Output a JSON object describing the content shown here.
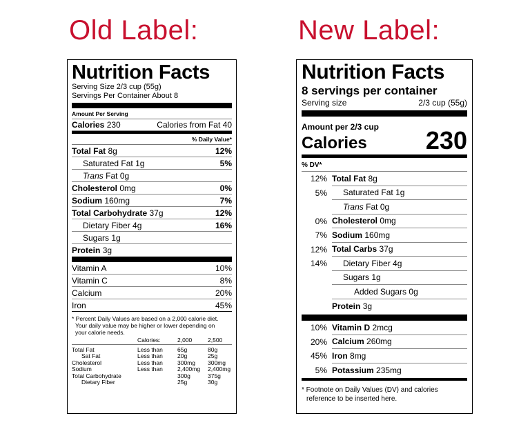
{
  "headings": {
    "old": "Old Label:",
    "new": "New Label:"
  },
  "old_label": {
    "title": "Nutrition Facts",
    "serving_size": "Serving Size 2/3 cup (55g)",
    "servings_per_container": "Servings Per Container About 8",
    "amount_per_serving": "Amount Per Serving",
    "calories_label": "Calories",
    "calories_value": "230",
    "calories_from_fat": "Calories from Fat 40",
    "daily_value_header": "% Daily Value*",
    "nutrients": [
      {
        "name": "Total Fat",
        "amount": "8g",
        "pct": "12%",
        "bold": true,
        "indent": 0
      },
      {
        "name": "Saturated Fat",
        "amount": "1g",
        "pct": "5%",
        "bold": false,
        "indent": 1
      },
      {
        "name": "Trans",
        "suffix": "Fat 0g",
        "pct": "",
        "bold": false,
        "indent": 1
      },
      {
        "name": "Cholesterol",
        "amount": "0mg",
        "pct": "0%",
        "bold": true,
        "indent": 0
      },
      {
        "name": "Sodium",
        "amount": "160mg",
        "pct": "7%",
        "bold": true,
        "indent": 0
      },
      {
        "name": "Total Carbohydrate",
        "amount": "37g",
        "pct": "12%",
        "bold": true,
        "indent": 0
      },
      {
        "name": "Dietary Fiber",
        "amount": "4g",
        "pct": "16%",
        "bold": false,
        "indent": 1
      },
      {
        "name": "Sugars",
        "amount": "1g",
        "pct": "",
        "bold": false,
        "indent": 1
      },
      {
        "name": "Protein",
        "amount": "3g",
        "pct": "",
        "bold": true,
        "indent": 0
      }
    ],
    "vitamins": [
      {
        "name": "Vitamin A",
        "pct": "10%"
      },
      {
        "name": "Vitamin C",
        "pct": "8%"
      },
      {
        "name": "Calcium",
        "pct": "20%"
      },
      {
        "name": "Iron",
        "pct": "45%"
      }
    ],
    "footnote_line1": "* Percent Daily Values are based on a 2,000 calorie diet.",
    "footnote_line2": "Your daily value may be higher or lower depending on",
    "footnote_line3": "your calorie needs.",
    "footnote_table": {
      "header": [
        "",
        "Calories:",
        "2,000",
        "2,500"
      ],
      "rows": [
        [
          "Total Fat",
          "Less than",
          "65g",
          "80g"
        ],
        [
          "Sat Fat",
          "Less than",
          "20g",
          "25g"
        ],
        [
          "Cholesterol",
          "Less than",
          "300mg",
          "300mg"
        ],
        [
          "Sodium",
          "Less than",
          "2,400mg",
          "2,400mg"
        ],
        [
          "Total Carbohydrate",
          "",
          "300g",
          "375g"
        ],
        [
          "Dietary Fiber",
          "",
          "25g",
          "30g"
        ]
      ]
    }
  },
  "new_label": {
    "title": "Nutrition Facts",
    "servings_per_container": "8 servings per container",
    "serving_size_label": "Serving size",
    "serving_size_value": "2/3 cup (55g)",
    "amount_per": "Amount per 2/3 cup",
    "calories_label": "Calories",
    "calories_value": "230",
    "dv_header": "% DV*",
    "nutrients": [
      {
        "pct": "12%",
        "name": "Total Fat",
        "amount": "8g",
        "bold": true,
        "indent": 0
      },
      {
        "pct": "5%",
        "name": "Saturated Fat",
        "amount": "1g",
        "bold": false,
        "indent": 1
      },
      {
        "pct": "",
        "name": "Trans",
        "suffix": "Fat 0g",
        "bold": false,
        "indent": 1
      },
      {
        "pct": "0%",
        "name": "Cholesterol",
        "amount": "0mg",
        "bold": true,
        "indent": 0
      },
      {
        "pct": "7%",
        "name": "Sodium",
        "amount": "160mg",
        "bold": true,
        "indent": 0
      },
      {
        "pct": "12%",
        "name": "Total Carbs",
        "amount": "37g",
        "bold": true,
        "indent": 0
      },
      {
        "pct": "14%",
        "name": "Dietary Fiber",
        "amount": "4g",
        "bold": false,
        "indent": 1
      },
      {
        "pct": "",
        "name": "Sugars",
        "amount": "1g",
        "bold": false,
        "indent": 1
      },
      {
        "pct": "",
        "name": "Added Sugars",
        "amount": "0g",
        "bold": false,
        "indent": 2
      },
      {
        "pct": "",
        "name": "Protein",
        "amount": "3g",
        "bold": true,
        "indent": 0
      }
    ],
    "vitamins": [
      {
        "pct": "10%",
        "name": "Vitamin D",
        "amount": "2mcg"
      },
      {
        "pct": "20%",
        "name": "Calcium",
        "amount": "260mg"
      },
      {
        "pct": "45%",
        "name": "Iron",
        "amount": "8mg"
      },
      {
        "pct": "5%",
        "name": "Potassium",
        "amount": "235mg"
      }
    ],
    "footnote_line1": "* Footnote on Daily Values (DV) and calories",
    "footnote_line2": "reference to be inserted here."
  },
  "colors": {
    "heading": "#c8102e"
  }
}
